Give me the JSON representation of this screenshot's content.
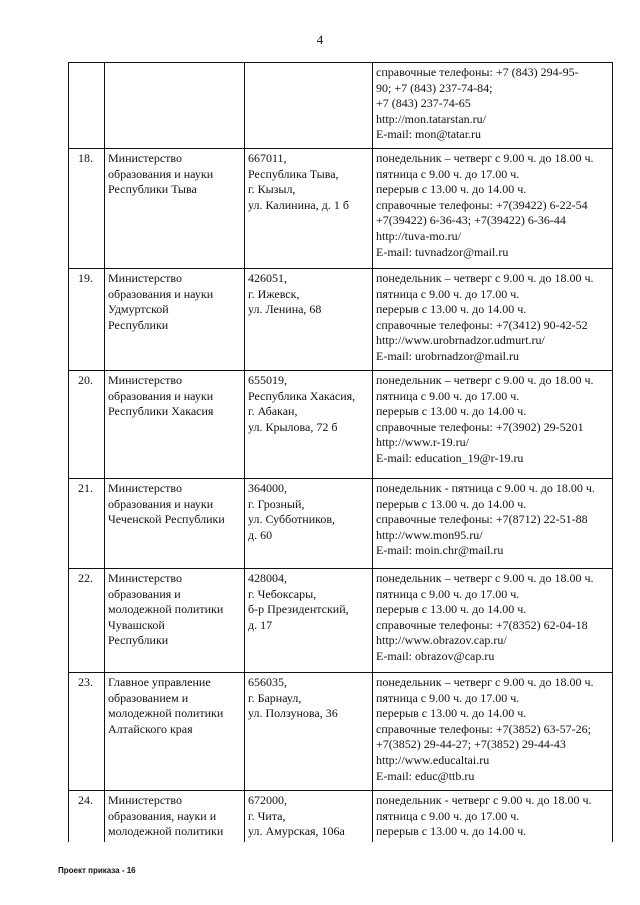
{
  "page_number": "4",
  "footer": "Проект приказа - 16",
  "table": {
    "rows": [
      {
        "info": [
          "справочные телефоны: +7 (843) 294-95-",
          "90; +7 (843) 237-74-84;",
          "+7 (843) 237-74-65",
          "http://mon.tatarstan.ru/",
          "E-mail: mon@tatar.ru"
        ]
      },
      {
        "number": "18.",
        "name": [
          "Министерство",
          "образования и науки",
          "Республики Тыва"
        ],
        "address": [
          "667011,",
          "Республика Тыва,",
          "г. Кызыл,",
          "ул. Калинина, д. 1 б"
        ],
        "info": [
          "понедельник – четверг с 9.00 ч. до 18.00 ч.",
          "пятница с 9.00 ч. до 17.00 ч.",
          "перерыв с 13.00 ч. до 14.00 ч.",
          "справочные телефоны: +7(39422) 6-22-54",
          "+7(39422) 6-36-43; +7(39422) 6-36-44",
          "http://tuva-mo.ru/",
          "E-mail: tuvnadzor@mail.ru"
        ]
      },
      {
        "number": "19.",
        "name": [
          "Министерство",
          "образования и науки",
          "Удмуртской",
          "Республики"
        ],
        "address": [
          "426051,",
          "г. Ижевск,",
          "ул. Ленина, 68"
        ],
        "info": [
          "понедельник – четверг с 9.00 ч. до 18.00 ч.",
          "пятница с 9.00 ч. до 17.00 ч.",
          "перерыв с 13.00 ч. до 14.00 ч.",
          "справочные телефоны: +7(3412) 90-42-52",
          "http://www.urobrnadzor.udmurt.ru/",
          "E-mail: urobrnadzor@mail.ru"
        ]
      },
      {
        "number": "20.",
        "name": [
          "Министерство",
          "образования и науки",
          "Республики Хакасия"
        ],
        "address": [
          "655019,",
          "Республика Хакасия,",
          "г. Абакан,",
          "ул. Крылова, 72 б"
        ],
        "info": [
          "понедельник – четверг с 9.00 ч. до 18.00 ч.",
          "пятница с 9.00 ч. до 17.00 ч.",
          "перерыв с 13.00 ч. до 14.00 ч.",
          "справочные телефоны: +7(3902) 29-5201",
          "http://www.r-19.ru/",
          "E-mail: education_19@r-19.ru"
        ]
      },
      {
        "number": "21.",
        "name": [
          "Министерство",
          "образования и науки",
          "Чеченской Республики"
        ],
        "address": [
          "364000,",
          "г. Грозный,",
          "ул. Субботников,",
          "д. 60"
        ],
        "info": [
          "понедельник - пятница с 9.00 ч. до 18.00 ч.",
          "перерыв с 13.00 ч. до 14.00 ч.",
          "справочные телефоны: +7(8712) 22-51-88",
          "http://www.mon95.ru/",
          "E-mail: moin.chr@mail.ru"
        ]
      },
      {
        "number": "22.",
        "name": [
          "Министерство",
          "образования и",
          "молодежной политики",
          "Чувашской",
          "Республики"
        ],
        "address": [
          "428004,",
          "г. Чебоксары,",
          "б-р Президентский,",
          "д. 17"
        ],
        "info": [
          "понедельник – четверг с 9.00 ч. до 18.00 ч.",
          "пятница с 9.00 ч. до 17.00 ч.",
          "перерыв с 13.00 ч. до 14.00 ч.",
          "справочные телефоны: +7(8352) 62-04-18",
          "http://www.obrazov.cap.ru/",
          "E-mail: obrazov@cap.ru"
        ]
      },
      {
        "number": "23.",
        "name": [
          "Главное управление",
          "образованием и",
          "молодежной политики",
          "Алтайского края"
        ],
        "address": [
          "656035,",
          "г. Барнаул,",
          "ул. Ползунова, 36"
        ],
        "info": [
          "понедельник – четверг с 9.00 ч. до 18.00 ч.",
          "пятница с 9.00 ч. до 17.00 ч.",
          "перерыв с 13.00 ч. до 14.00 ч.",
          "справочные телефоны: +7(3852) 63-57-26;",
          "+7(3852) 29-44-27; +7(3852) 29-44-43",
          "http://www.educaltai.ru",
          "E-mail: educ@ttb.ru"
        ]
      },
      {
        "number": "24.",
        "name": [
          "Министерство",
          "образования, науки и",
          "молодежной политики"
        ],
        "address": [
          "672000,",
          "г. Чита,",
          "ул. Амурская, 106а"
        ],
        "info": [
          "понедельник - четверг с 9.00 ч. до 18.00 ч.",
          "пятница с 9.00 ч. до 17.00 ч.",
          "перерыв с 13.00 ч. до 14.00 ч."
        ]
      }
    ]
  }
}
